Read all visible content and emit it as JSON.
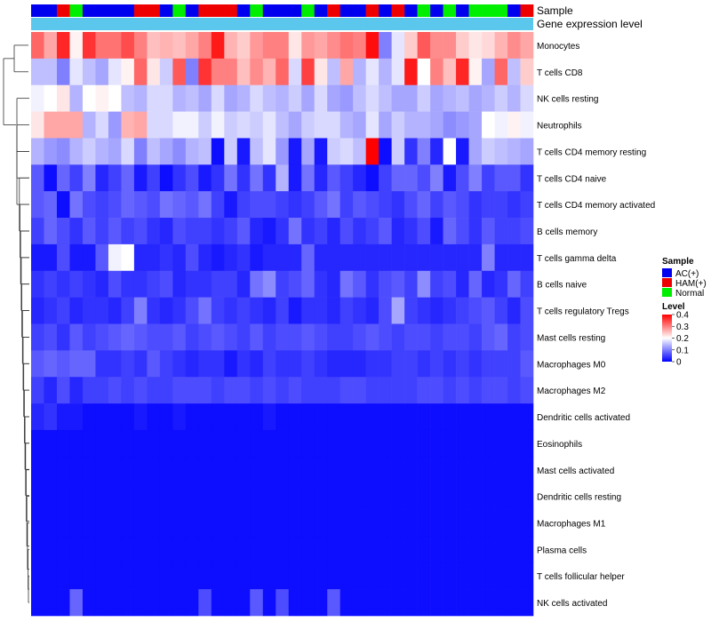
{
  "chart_data": {
    "type": "heatmap",
    "title": "",
    "annotations": [
      "Sample",
      "Gene expression level"
    ],
    "sample_groups": [
      "AC",
      "AC",
      "HAM",
      "Normal",
      "AC",
      "AC",
      "AC",
      "AC",
      "HAM",
      "HAM",
      "AC",
      "Normal",
      "AC",
      "HAM",
      "HAM",
      "HAM",
      "AC",
      "Normal",
      "AC",
      "AC",
      "AC",
      "Normal",
      "AC",
      "HAM",
      "AC",
      "AC",
      "HAM",
      "AC",
      "HAM",
      "AC",
      "Normal",
      "AC",
      "Normal",
      "AC",
      "Normal",
      "Normal",
      "Normal",
      "AC",
      "HAM"
    ],
    "rows": [
      "Monocytes",
      "T cells CD8",
      "NK cells resting",
      "Neutrophils",
      "T cells CD4 memory resting",
      "T cells CD4 naive",
      "T cells CD4 memory activated",
      "B cells memory",
      "T cells gamma delta",
      "B cells naive",
      "T cells regulatory  Tregs",
      "Mast cells resting",
      "Macrophages M0",
      "Macrophages M2",
      "Dendritic cells activated",
      "Eosinophils",
      "Mast cells activated",
      "Dendritic cells resting",
      "Macrophages M1",
      "Plasma cells",
      "T cells follicular helper",
      "NK cells activated"
    ],
    "values": [
      [
        0.32,
        0.27,
        0.37,
        0.21,
        0.36,
        0.31,
        0.31,
        0.34,
        0.3,
        0.25,
        0.26,
        0.25,
        0.27,
        0.3,
        0.38,
        0.26,
        0.24,
        0.28,
        0.3,
        0.3,
        0.22,
        0.28,
        0.27,
        0.29,
        0.31,
        0.3,
        0.39,
        0.1,
        0.18,
        0.24,
        0.33,
        0.29,
        0.29,
        0.24,
        0.22,
        0.23,
        0.26,
        0.29,
        0.27
      ],
      [
        0.15,
        0.15,
        0.1,
        0.18,
        0.15,
        0.13,
        0.18,
        0.21,
        0.32,
        0.22,
        0.16,
        0.33,
        0.1,
        0.36,
        0.3,
        0.3,
        0.25,
        0.29,
        0.26,
        0.32,
        0.17,
        0.35,
        0.22,
        0.15,
        0.27,
        0.14,
        0.18,
        0.14,
        0.18,
        0.38,
        0.2,
        0.3,
        0.25,
        0.37,
        0.21,
        0.13,
        0.32,
        0.15,
        0.24
      ],
      [
        0.19,
        0.2,
        0.22,
        0.14,
        0.2,
        0.21,
        0.2,
        0.15,
        0.14,
        0.17,
        0.17,
        0.14,
        0.15,
        0.13,
        0.17,
        0.13,
        0.14,
        0.17,
        0.15,
        0.14,
        0.16,
        0.13,
        0.17,
        0.13,
        0.12,
        0.15,
        0.17,
        0.15,
        0.13,
        0.13,
        0.16,
        0.13,
        0.14,
        0.15,
        0.13,
        0.14,
        0.16,
        0.14,
        0.17
      ],
      [
        0.22,
        0.27,
        0.27,
        0.27,
        0.14,
        0.17,
        0.12,
        0.26,
        0.27,
        0.17,
        0.17,
        0.19,
        0.19,
        0.16,
        0.19,
        0.16,
        0.17,
        0.16,
        0.18,
        0.15,
        0.13,
        0.16,
        0.17,
        0.17,
        0.14,
        0.13,
        0.18,
        0.13,
        0.16,
        0.14,
        0.14,
        0.13,
        0.11,
        0.12,
        0.13,
        0.2,
        0.19,
        0.21,
        0.19
      ],
      [
        0.14,
        0.12,
        0.11,
        0.14,
        0.16,
        0.14,
        0.13,
        0.17,
        0.1,
        0.15,
        0.13,
        0.11,
        0.14,
        0.15,
        0.01,
        0.16,
        0.02,
        0.15,
        0.18,
        0.12,
        0.02,
        0.13,
        0.02,
        0.16,
        0.17,
        0.15,
        0.4,
        0.01,
        0.16,
        0.04,
        0.1,
        0.03,
        0.2,
        0.02,
        0.13,
        0.16,
        0.15,
        0.14,
        0.13
      ],
      [
        0.07,
        0.01,
        0.08,
        0.05,
        0.1,
        0.03,
        0.05,
        0.08,
        0.02,
        0.05,
        0.01,
        0.04,
        0.06,
        0.02,
        0.04,
        0.09,
        0.04,
        0.09,
        0.04,
        0.14,
        0.02,
        0.09,
        0.03,
        0.07,
        0.05,
        0.03,
        0.01,
        0.05,
        0.08,
        0.08,
        0.06,
        0.1,
        0.02,
        0.06,
        0.1,
        0.05,
        0.07,
        0.07,
        0.04
      ],
      [
        0.07,
        0.08,
        0.01,
        0.09,
        0.06,
        0.05,
        0.06,
        0.08,
        0.07,
        0.06,
        0.09,
        0.08,
        0.07,
        0.09,
        0.05,
        0.02,
        0.05,
        0.06,
        0.06,
        0.05,
        0.04,
        0.05,
        0.07,
        0.09,
        0.05,
        0.07,
        0.06,
        0.05,
        0.04,
        0.06,
        0.08,
        0.05,
        0.07,
        0.06,
        0.04,
        0.05,
        0.05,
        0.04,
        0.05
      ],
      [
        0.05,
        0.08,
        0.06,
        0.04,
        0.07,
        0.05,
        0.07,
        0.05,
        0.06,
        0.04,
        0.03,
        0.06,
        0.05,
        0.05,
        0.04,
        0.05,
        0.07,
        0.03,
        0.02,
        0.04,
        0.09,
        0.04,
        0.05,
        0.03,
        0.06,
        0.04,
        0.05,
        0.07,
        0.03,
        0.04,
        0.06,
        0.02,
        0.08,
        0.06,
        0.04,
        0.07,
        0.05,
        0.05,
        0.06
      ],
      [
        0.02,
        0.02,
        0.06,
        0.02,
        0.02,
        0.07,
        0.19,
        0.2,
        0.03,
        0.03,
        0.04,
        0.03,
        0.06,
        0.03,
        0.02,
        0.03,
        0.04,
        0.02,
        0.03,
        0.03,
        0.03,
        0.08,
        0.03,
        0.03,
        0.03,
        0.03,
        0.03,
        0.03,
        0.03,
        0.03,
        0.03,
        0.03,
        0.03,
        0.03,
        0.03,
        0.1,
        0.03,
        0.03,
        0.03
      ],
      [
        0.04,
        0.05,
        0.04,
        0.05,
        0.04,
        0.03,
        0.06,
        0.04,
        0.04,
        0.05,
        0.06,
        0.03,
        0.04,
        0.04,
        0.05,
        0.05,
        0.03,
        0.09,
        0.11,
        0.05,
        0.06,
        0.08,
        0.04,
        0.03,
        0.09,
        0.07,
        0.04,
        0.06,
        0.07,
        0.05,
        0.11,
        0.05,
        0.06,
        0.03,
        0.08,
        0.03,
        0.04,
        0.08,
        0.05
      ],
      [
        0.03,
        0.04,
        0.05,
        0.03,
        0.04,
        0.04,
        0.03,
        0.05,
        0.1,
        0.04,
        0.03,
        0.04,
        0.06,
        0.09,
        0.05,
        0.04,
        0.05,
        0.04,
        0.03,
        0.05,
        0.02,
        0.04,
        0.04,
        0.03,
        0.05,
        0.04,
        0.03,
        0.06,
        0.13,
        0.05,
        0.04,
        0.03,
        0.04,
        0.05,
        0.06,
        0.07,
        0.05,
        0.03,
        0.06
      ],
      [
        0.05,
        0.06,
        0.04,
        0.07,
        0.05,
        0.06,
        0.07,
        0.08,
        0.07,
        0.06,
        0.06,
        0.07,
        0.05,
        0.06,
        0.07,
        0.06,
        0.05,
        0.07,
        0.05,
        0.06,
        0.06,
        0.07,
        0.06,
        0.05,
        0.05,
        0.06,
        0.07,
        0.06,
        0.05,
        0.06,
        0.06,
        0.05,
        0.06,
        0.06,
        0.05,
        0.07,
        0.08,
        0.05,
        0.06
      ],
      [
        0.07,
        0.08,
        0.07,
        0.08,
        0.08,
        0.04,
        0.04,
        0.05,
        0.04,
        0.07,
        0.05,
        0.04,
        0.03,
        0.04,
        0.04,
        0.02,
        0.04,
        0.03,
        0.05,
        0.04,
        0.04,
        0.05,
        0.04,
        0.03,
        0.03,
        0.03,
        0.04,
        0.04,
        0.05,
        0.05,
        0.04,
        0.05,
        0.04,
        0.05,
        0.04,
        0.05,
        0.05,
        0.05,
        0.07
      ],
      [
        0.05,
        0.03,
        0.06,
        0.03,
        0.05,
        0.05,
        0.06,
        0.05,
        0.06,
        0.05,
        0.05,
        0.06,
        0.06,
        0.06,
        0.05,
        0.06,
        0.06,
        0.05,
        0.06,
        0.05,
        0.06,
        0.05,
        0.05,
        0.05,
        0.06,
        0.06,
        0.05,
        0.05,
        0.05,
        0.05,
        0.06,
        0.06,
        0.05,
        0.06,
        0.05,
        0.06,
        0.06,
        0.05,
        0.06
      ],
      [
        0.03,
        0.04,
        0.02,
        0.02,
        0.01,
        0.01,
        0.01,
        0.01,
        0.02,
        0.01,
        0.01,
        0.02,
        0.01,
        0.01,
        0.01,
        0.01,
        0.01,
        0.01,
        0.02,
        0.01,
        0.01,
        0.01,
        0.01,
        0.01,
        0.01,
        0.01,
        0.01,
        0.01,
        0.01,
        0.01,
        0.01,
        0.01,
        0.01,
        0.01,
        0.01,
        0.01,
        0.01,
        0.01,
        0.01
      ],
      [
        0.01,
        0.01,
        0.01,
        0.01,
        0.01,
        0.01,
        0.01,
        0.01,
        0.01,
        0.01,
        0.01,
        0.01,
        0.01,
        0.01,
        0.01,
        0.01,
        0.01,
        0.01,
        0.01,
        0.01,
        0.01,
        0.01,
        0.01,
        0.01,
        0.01,
        0.01,
        0.01,
        0.01,
        0.01,
        0.01,
        0.01,
        0.01,
        0.01,
        0.01,
        0.01,
        0.01,
        0.01,
        0.01,
        0.01
      ],
      [
        0.01,
        0.01,
        0.01,
        0.01,
        0.01,
        0.01,
        0.01,
        0.01,
        0.01,
        0.01,
        0.01,
        0.01,
        0.01,
        0.01,
        0.01,
        0.01,
        0.01,
        0.01,
        0.01,
        0.01,
        0.01,
        0.01,
        0.01,
        0.01,
        0.01,
        0.01,
        0.01,
        0.01,
        0.01,
        0.01,
        0.01,
        0.01,
        0.01,
        0.01,
        0.01,
        0.01,
        0.01,
        0.01,
        0.01
      ],
      [
        0.01,
        0.01,
        0.01,
        0.01,
        0.01,
        0.01,
        0.01,
        0.01,
        0.01,
        0.01,
        0.01,
        0.01,
        0.01,
        0.01,
        0.01,
        0.01,
        0.01,
        0.01,
        0.01,
        0.01,
        0.01,
        0.01,
        0.01,
        0.01,
        0.01,
        0.01,
        0.01,
        0.01,
        0.01,
        0.01,
        0.01,
        0.01,
        0.01,
        0.01,
        0.01,
        0.01,
        0.01,
        0.01,
        0.01
      ],
      [
        0.01,
        0.01,
        0.01,
        0.01,
        0.01,
        0.01,
        0.01,
        0.01,
        0.01,
        0.01,
        0.01,
        0.01,
        0.01,
        0.01,
        0.01,
        0.01,
        0.01,
        0.01,
        0.01,
        0.01,
        0.01,
        0.01,
        0.01,
        0.01,
        0.01,
        0.01,
        0.01,
        0.01,
        0.01,
        0.01,
        0.01,
        0.01,
        0.01,
        0.01,
        0.01,
        0.01,
        0.01,
        0.01,
        0.01
      ],
      [
        0.01,
        0.01,
        0.01,
        0.01,
        0.01,
        0.01,
        0.01,
        0.01,
        0.01,
        0.01,
        0.01,
        0.01,
        0.01,
        0.01,
        0.01,
        0.01,
        0.01,
        0.01,
        0.01,
        0.01,
        0.01,
        0.01,
        0.01,
        0.01,
        0.01,
        0.01,
        0.01,
        0.01,
        0.01,
        0.01,
        0.01,
        0.01,
        0.01,
        0.01,
        0.01,
        0.01,
        0.01,
        0.01,
        0.01
      ],
      [
        0.01,
        0.01,
        0.01,
        0.01,
        0.01,
        0.01,
        0.01,
        0.01,
        0.01,
        0.01,
        0.01,
        0.01,
        0.01,
        0.01,
        0.01,
        0.01,
        0.01,
        0.01,
        0.01,
        0.01,
        0.01,
        0.01,
        0.01,
        0.01,
        0.01,
        0.01,
        0.01,
        0.01,
        0.01,
        0.01,
        0.01,
        0.01,
        0.01,
        0.01,
        0.01,
        0.01,
        0.01,
        0.01,
        0.01
      ],
      [
        0.01,
        0.01,
        0.01,
        0.08,
        0.01,
        0.01,
        0.01,
        0.01,
        0.01,
        0.01,
        0.01,
        0.01,
        0.01,
        0.06,
        0.01,
        0.01,
        0.01,
        0.07,
        0.01,
        0.06,
        0.01,
        0.01,
        0.01,
        0.07,
        0.01,
        0.01,
        0.01,
        0.01,
        0.01,
        0.01,
        0.01,
        0.01,
        0.01,
        0.01,
        0.01,
        0.01,
        0.01,
        0.01,
        0.01
      ]
    ],
    "color_scale": {
      "min": 0,
      "max": 0.4,
      "low": "#0000ff",
      "mid": "#ffffff",
      "high": "#ff0000"
    },
    "legend": {
      "sample_title": "Sample",
      "sample_items": [
        {
          "key": "AC",
          "label": "AC(+)",
          "color": "#0000ee"
        },
        {
          "key": "HAM",
          "label": "HAM(+)",
          "color": "#ee0000"
        },
        {
          "key": "Normal",
          "label": "Normal",
          "color": "#00ee00"
        }
      ],
      "level_title": "Level",
      "level_ticks": [
        0.4,
        0.3,
        0.2,
        0.1,
        0
      ]
    },
    "annotation_colors": {
      "gene_expression_level": "#5bc7ec"
    }
  }
}
